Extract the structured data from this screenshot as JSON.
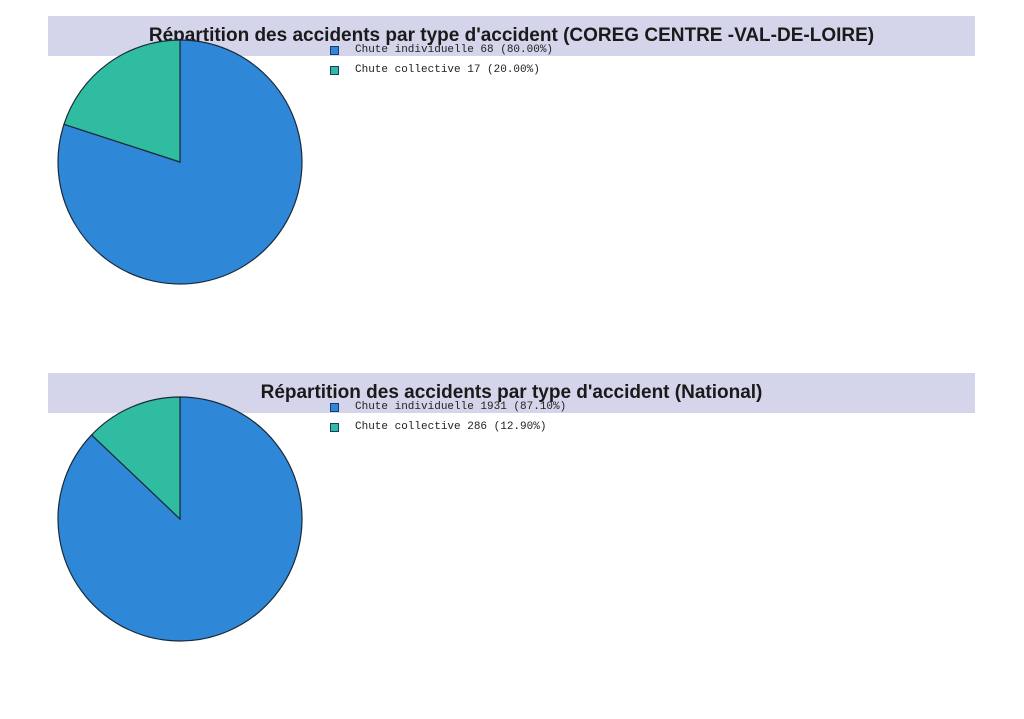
{
  "colors": {
    "individuelle": "#2f87d8",
    "collective": "#2fbca0",
    "title_bg": "#d4d4ea",
    "stroke": "#1a2a3a"
  },
  "chart_data": [
    {
      "type": "pie",
      "title": "Répartition des accidents par type d'accident (COREG CENTRE -VAL-DE-LOIRE)",
      "slices": [
        {
          "label": "Chute individuelle",
          "value": 68,
          "percent": 80.0,
          "legend": "Chute individuelle 68 (80.00%)",
          "color": "#2f87d8"
        },
        {
          "label": "Chute collective",
          "value": 17,
          "percent": 20.0,
          "legend": "Chute collective 17 (20.00%)",
          "color": "#2fbca0"
        }
      ],
      "legend_position": "right"
    },
    {
      "type": "pie",
      "title": "Répartition des accidents par type d'accident (National)",
      "slices": [
        {
          "label": "Chute individuelle",
          "value": 1931,
          "percent": 87.1,
          "legend": "Chute individuelle 1931 (87.10%)",
          "color": "#2f87d8"
        },
        {
          "label": "Chute collective",
          "value": 286,
          "percent": 12.9,
          "legend": "Chute collective 286 (12.90%)",
          "color": "#2fbca0"
        }
      ],
      "legend_position": "right"
    }
  ]
}
